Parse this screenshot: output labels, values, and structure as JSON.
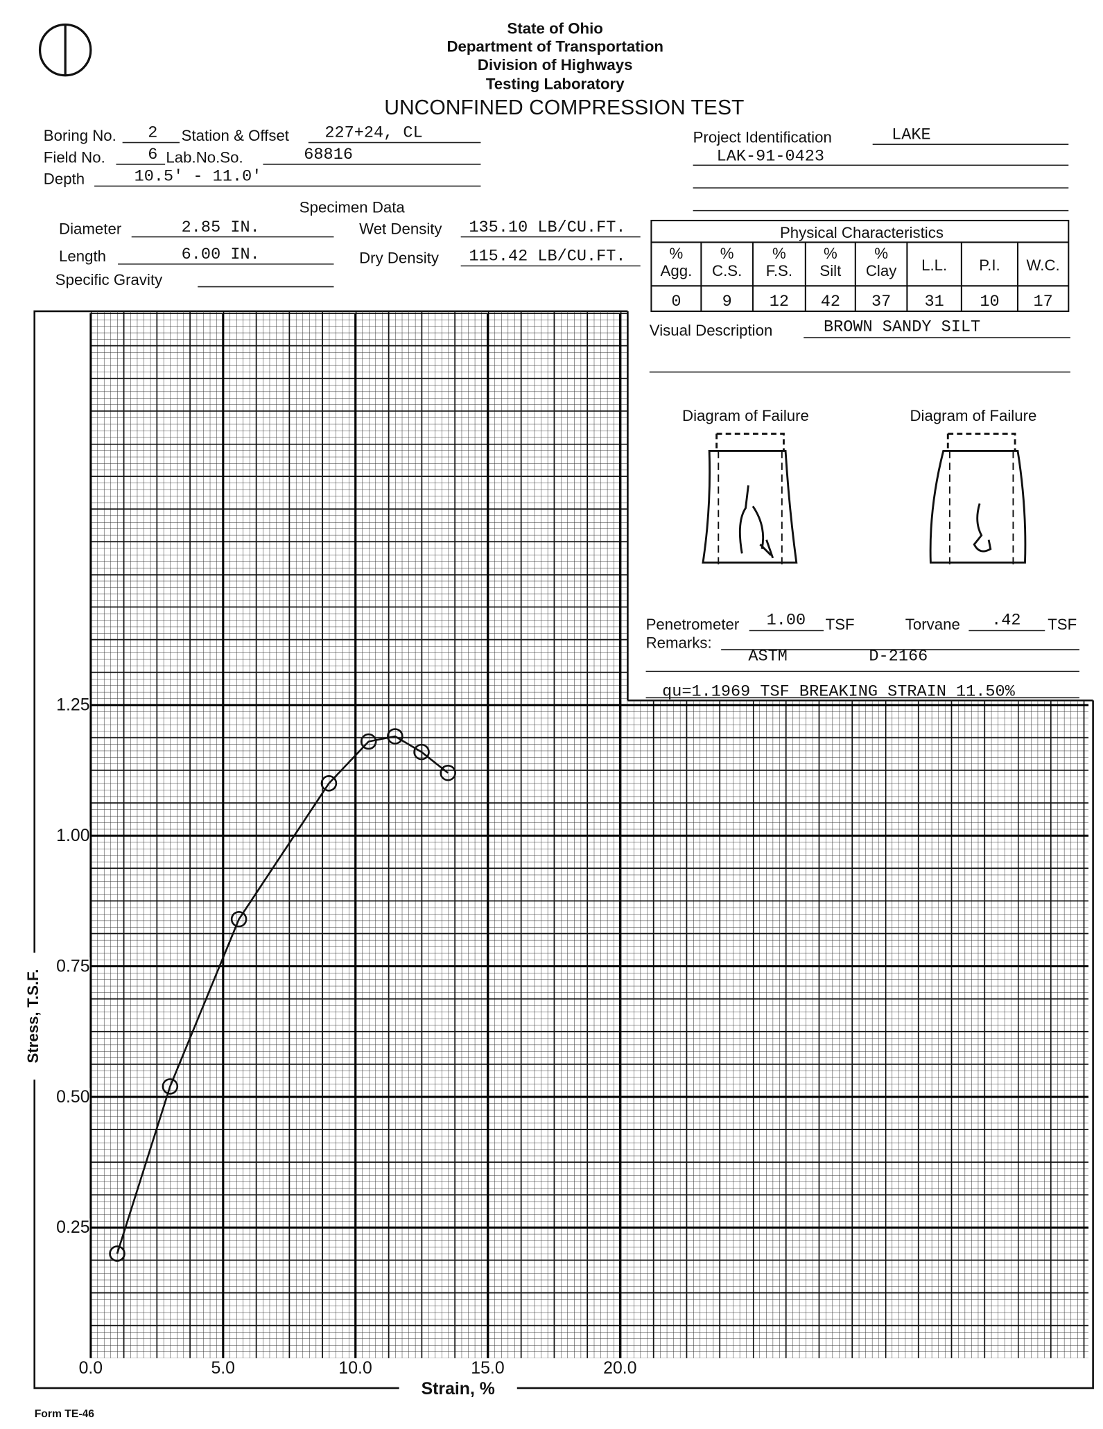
{
  "header": {
    "agency": [
      "State of Ohio",
      "Department of Transportation",
      "Division of Highways",
      "Testing Laboratory"
    ],
    "title": "UNCONFINED COMPRESSION TEST"
  },
  "fields": {
    "boring_no": {
      "label": "Boring No.",
      "value": "2"
    },
    "station": {
      "label": "Station & Offset",
      "value": "227+24, CL"
    },
    "field_no": {
      "label": "Field No.",
      "value": "6"
    },
    "lab_no": {
      "label": "Lab.No.So.",
      "value": "68816"
    },
    "depth": {
      "label": "Depth",
      "value": "10.5' - 11.0'"
    },
    "project": {
      "label": "Project Identification",
      "value": "LAKE",
      "value2": "LAK-91-0423"
    }
  },
  "specimen": {
    "title": "Specimen Data",
    "diameter": {
      "label": "Diameter",
      "value": "2.85 IN."
    },
    "length": {
      "label": "Length",
      "value": "6.00 IN."
    },
    "specific_gravity": {
      "label": "Specific Gravity"
    },
    "wet_density": {
      "label": "Wet Density",
      "value": "135.10 LB/CU.FT."
    },
    "dry_density": {
      "label": "Dry Density",
      "value": "115.42 LB/CU.FT."
    }
  },
  "physical": {
    "title": "Physical Characteristics",
    "headers": [
      [
        "%",
        "Agg."
      ],
      [
        "%",
        "C.S."
      ],
      [
        "%",
        "F.S."
      ],
      [
        "%",
        "Silt"
      ],
      [
        "%",
        "Clay"
      ],
      [
        "L.L."
      ],
      [
        "P.I."
      ],
      [
        "W.C."
      ]
    ],
    "row": [
      "0",
      "9",
      "12",
      "42",
      "37",
      "31",
      "10",
      "17"
    ]
  },
  "visual": {
    "label": "Visual Description",
    "value": "BROWN SANDY SILT"
  },
  "failure": [
    "Diagram of Failure",
    "Diagram of Failure"
  ],
  "tests": {
    "penetrometer": {
      "label": "Penetrometer",
      "value": "1.00",
      "unit": "TSF"
    },
    "torvane": {
      "label": "Torvane",
      "value": ".42",
      "unit": "TSF"
    },
    "remarks": {
      "label": "Remarks:",
      "lines": [
        "ASTM",
        "D-2166"
      ],
      "result": "qu=1.1969 TSF BREAKING STRAIN 11.50%"
    }
  },
  "chart_data": {
    "type": "scatter-line",
    "x_label": "Strain, %",
    "y_label": "Stress, T.S.F.",
    "x": [
      1.0,
      3.0,
      5.6,
      9.0,
      10.5,
      11.5,
      12.5,
      13.5
    ],
    "series": [
      {
        "values": [
          0.2,
          0.52,
          0.84,
          1.1,
          1.18,
          1.19,
          1.16,
          1.12
        ],
        "color": "#111"
      }
    ],
    "xlim": [
      0,
      37.7
    ],
    "ylim": [
      0,
      2.0
    ],
    "xticks": [
      {
        "value": 0,
        "label": "0.0"
      },
      {
        "value": 5,
        "label": "5.0"
      },
      {
        "value": 10,
        "label": "10.0"
      },
      {
        "value": 15,
        "label": "15.0"
      },
      {
        "value": 20,
        "label": "20.0"
      }
    ],
    "yticks": [
      0.25,
      {
        "value": 0.5,
        "label": "0.50"
      },
      0.75,
      {
        "value": 1,
        "label": "1.00"
      },
      1.25
    ],
    "grid": true
  },
  "footer": "Form TE-46"
}
